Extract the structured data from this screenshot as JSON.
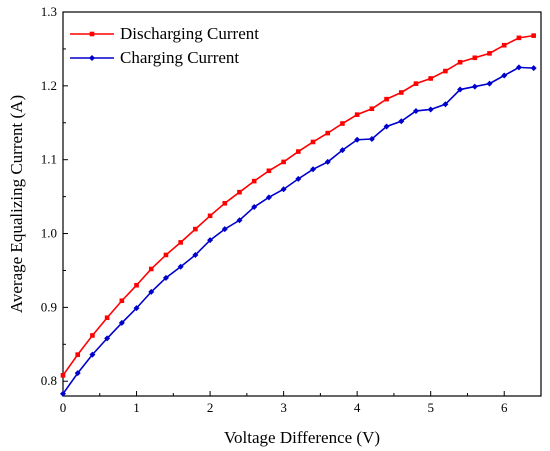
{
  "chart_data": {
    "type": "line",
    "title": "",
    "xlabel": "Voltage Difference (V)",
    "ylabel": "Average Equalizing Current (A)",
    "xlim": [
      0,
      6.5
    ],
    "ylim": [
      0.78,
      1.3
    ],
    "xticks": [
      "0",
      "1",
      "2",
      "3",
      "4",
      "5",
      "6"
    ],
    "yticks": [
      "0.8",
      "0.9",
      "1.0",
      "1.1",
      "1.2",
      "1.3"
    ],
    "grid": false,
    "legend_position": "top-left",
    "series": [
      {
        "name": "Discharging Current",
        "color": "#ff0000",
        "marker": "square",
        "x": [
          0.0,
          0.2,
          0.4,
          0.6,
          0.8,
          1.0,
          1.2,
          1.4,
          1.6,
          1.8,
          2.0,
          2.2,
          2.4,
          2.6,
          2.8,
          3.0,
          3.2,
          3.4,
          3.6,
          3.8,
          4.0,
          4.2,
          4.4,
          4.6,
          4.8,
          5.0,
          5.2,
          5.4,
          5.6,
          5.8,
          6.0,
          6.2,
          6.4
        ],
        "y": [
          0.808,
          0.836,
          0.862,
          0.886,
          0.909,
          0.93,
          0.952,
          0.971,
          0.988,
          1.006,
          1.024,
          1.041,
          1.056,
          1.071,
          1.085,
          1.097,
          1.111,
          1.124,
          1.136,
          1.149,
          1.161,
          1.169,
          1.182,
          1.191,
          1.203,
          1.21,
          1.22,
          1.232,
          1.238,
          1.244,
          1.255,
          1.265,
          1.268
        ]
      },
      {
        "name": "Charging Current",
        "color": "#0000cc",
        "marker": "diamond",
        "x": [
          0.0,
          0.2,
          0.4,
          0.6,
          0.8,
          1.0,
          1.2,
          1.4,
          1.6,
          1.8,
          2.0,
          2.2,
          2.4,
          2.6,
          2.8,
          3.0,
          3.2,
          3.4,
          3.6,
          3.8,
          4.0,
          4.2,
          4.4,
          4.6,
          4.8,
          5.0,
          5.2,
          5.4,
          5.6,
          5.8,
          6.0,
          6.2,
          6.4
        ],
        "y": [
          0.783,
          0.811,
          0.836,
          0.858,
          0.879,
          0.899,
          0.921,
          0.94,
          0.955,
          0.971,
          0.991,
          1.006,
          1.018,
          1.036,
          1.049,
          1.06,
          1.074,
          1.087,
          1.097,
          1.113,
          1.127,
          1.128,
          1.145,
          1.152,
          1.166,
          1.168,
          1.175,
          1.195,
          1.199,
          1.203,
          1.214,
          1.225,
          1.224
        ]
      }
    ]
  }
}
